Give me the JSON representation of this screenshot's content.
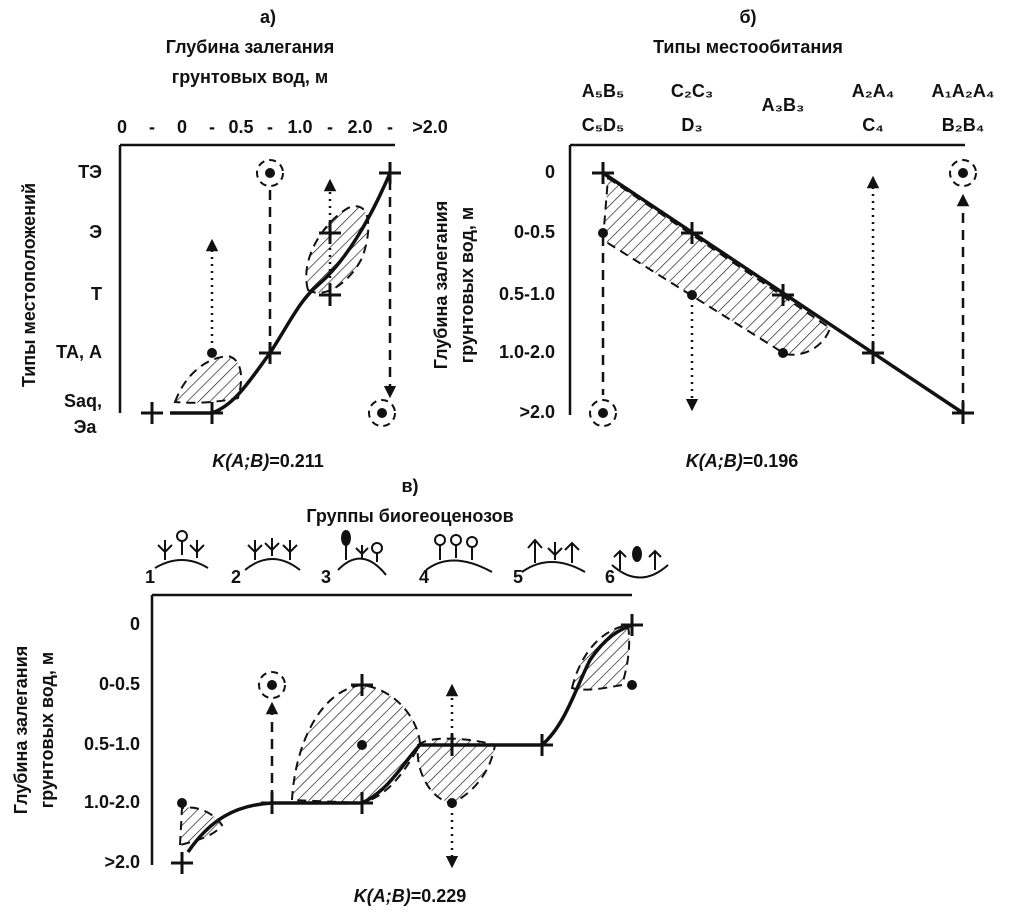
{
  "panels": [
    {
      "letter": "а)",
      "title": [
        "Глубина залегания",
        "грунтовых вод, м"
      ],
      "x_ticks": [
        "0",
        "-",
        "0",
        "-",
        "0.5",
        "-",
        "1.0",
        "-",
        "2.0",
        "-",
        ">2.0"
      ],
      "y_title": [
        "Типы местоположений"
      ],
      "y_ticks": [
        "ТЭ",
        "Э",
        "Т",
        "ТА, А",
        "Saq,",
        "Эа"
      ],
      "caption": {
        "italic": "K(A;B)",
        "value": "=0.211"
      }
    },
    {
      "letter": "б)",
      "title": [
        "Типы местообитания"
      ],
      "x_ticks": [
        [
          "A₅B₅",
          "C₅D₅"
        ],
        [
          "C₂C₃",
          "D₃"
        ],
        [
          "A₃B₃"
        ],
        [
          "A₂A₄",
          "C₄"
        ],
        [
          "A₁A₂A₄",
          "B₂B₄"
        ]
      ],
      "y_title": [
        "Глубина залегания",
        "грунтовых вод, м"
      ],
      "y_ticks": [
        "0",
        "0-0.5",
        "0.5-1.0",
        "1.0-2.0",
        ">2.0"
      ],
      "caption": {
        "italic": "K(A;B)",
        "value": "=0.196"
      }
    },
    {
      "letter": "в)",
      "title": [
        "Группы биогеоценозов"
      ],
      "x_ticks": [
        "1",
        "2",
        "3",
        "4",
        "5",
        "6"
      ],
      "y_title": [
        "Глубина залегания",
        "грунтовых вод, м"
      ],
      "y_ticks": [
        "0",
        "0-0.5",
        "0.5-1.0",
        "1.0-2.0",
        ">2.0"
      ],
      "caption": {
        "italic": "K(A;B)",
        "value": "=0.229"
      }
    }
  ]
}
